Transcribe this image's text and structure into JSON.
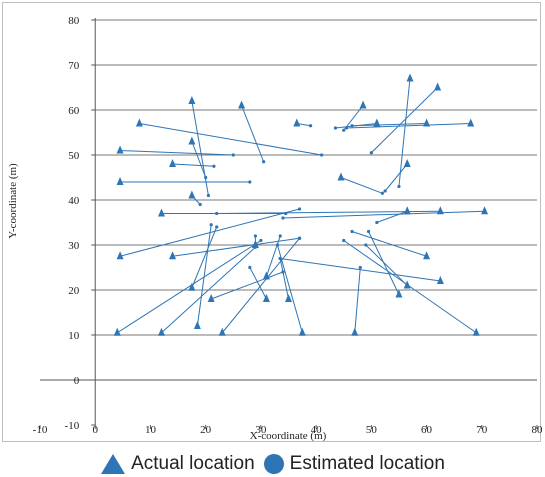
{
  "chart_data": {
    "type": "scatter",
    "title": "",
    "xlabel": "X-coordinate (m)",
    "ylabel": "Y-coordinate (m)",
    "xlim": [
      -10,
      80
    ],
    "ylim": [
      -10,
      80
    ],
    "x_ticks": [
      -10,
      0,
      10,
      20,
      30,
      40,
      50,
      60,
      70,
      80
    ],
    "y_ticks": [
      -10,
      0,
      10,
      20,
      30,
      40,
      50,
      60,
      70,
      80
    ],
    "grid": "horizontal major gridlines",
    "legend_position": "bottom",
    "series": [
      {
        "name": "Actual location",
        "marker": "triangle",
        "color": "#2e75b6",
        "points": [
          [
            8,
            57
          ],
          [
            17.5,
            62
          ],
          [
            26.5,
            61
          ],
          [
            36.5,
            57
          ],
          [
            48.5,
            61
          ],
          [
            57,
            67
          ],
          [
            62,
            65
          ],
          [
            4.5,
            51
          ],
          [
            17.5,
            53
          ],
          [
            14,
            48
          ],
          [
            4.5,
            44
          ],
          [
            17.5,
            41
          ],
          [
            44.5,
            45
          ],
          [
            51,
            57
          ],
          [
            60,
            57
          ],
          [
            68,
            57
          ],
          [
            56.5,
            48
          ],
          [
            12,
            37
          ],
          [
            56.5,
            37.5
          ],
          [
            62.5,
            37.5
          ],
          [
            70.5,
            37.5
          ],
          [
            4.5,
            27.5
          ],
          [
            14,
            27.5
          ],
          [
            17.5,
            20.5
          ],
          [
            21,
            18
          ],
          [
            31,
            23
          ],
          [
            31,
            18
          ],
          [
            35,
            18
          ],
          [
            29,
            30
          ],
          [
            18.5,
            12
          ],
          [
            4,
            10.5
          ],
          [
            12,
            10.5
          ],
          [
            23,
            10.5
          ],
          [
            37.5,
            10.5
          ],
          [
            47,
            10.5
          ],
          [
            69,
            10.5
          ],
          [
            55,
            19
          ],
          [
            56.5,
            21
          ],
          [
            60,
            27.5
          ],
          [
            62.5,
            22
          ]
        ]
      },
      {
        "name": "Estimated location",
        "marker": "circle",
        "color": "#2e75b6",
        "points": [
          [
            41,
            50
          ],
          [
            20.5,
            41
          ],
          [
            30.5,
            48.5
          ],
          [
            39,
            56.5
          ],
          [
            45,
            55.5
          ],
          [
            55,
            43
          ],
          [
            50,
            50.5
          ],
          [
            25,
            50
          ],
          [
            20,
            45
          ],
          [
            21.5,
            47.5
          ],
          [
            28,
            44
          ],
          [
            19,
            39
          ],
          [
            52,
            41.5
          ],
          [
            43.5,
            56
          ],
          [
            46.5,
            56.5
          ],
          [
            45.5,
            56
          ],
          [
            52.5,
            42
          ],
          [
            34.5,
            37
          ],
          [
            51,
            35
          ],
          [
            22,
            37
          ],
          [
            34,
            36
          ],
          [
            37,
            38
          ],
          [
            37,
            31.5
          ],
          [
            22,
            34
          ],
          [
            34,
            24
          ],
          [
            33.5,
            32
          ],
          [
            28,
            25
          ],
          [
            33.5,
            27
          ],
          [
            29,
            32
          ],
          [
            21,
            34.5
          ],
          [
            30,
            31
          ],
          [
            29,
            29.5
          ],
          [
            37,
            31.5
          ],
          [
            33,
            30
          ],
          [
            48,
            25
          ],
          [
            45,
            31
          ],
          [
            49.5,
            33
          ],
          [
            49,
            30
          ],
          [
            46.5,
            33
          ],
          [
            33.5,
            27
          ]
        ]
      }
    ],
    "pairs": [
      [
        0,
        0
      ],
      [
        1,
        1
      ],
      [
        2,
        2
      ],
      [
        3,
        3
      ],
      [
        4,
        4
      ],
      [
        5,
        5
      ],
      [
        6,
        6
      ],
      [
        7,
        7
      ],
      [
        8,
        8
      ],
      [
        9,
        9
      ],
      [
        10,
        10
      ],
      [
        11,
        11
      ],
      [
        12,
        12
      ],
      [
        13,
        13
      ],
      [
        14,
        14
      ],
      [
        15,
        15
      ],
      [
        16,
        16
      ],
      [
        17,
        17
      ],
      [
        18,
        18
      ],
      [
        19,
        19
      ],
      [
        20,
        20
      ],
      [
        21,
        21
      ],
      [
        22,
        22
      ],
      [
        23,
        23
      ],
      [
        24,
        24
      ],
      [
        25,
        25
      ],
      [
        26,
        26
      ],
      [
        27,
        27
      ],
      [
        28,
        28
      ],
      [
        29,
        29
      ],
      [
        30,
        30
      ],
      [
        31,
        31
      ],
      [
        32,
        32
      ],
      [
        33,
        33
      ],
      [
        34,
        34
      ],
      [
        35,
        35
      ],
      [
        36,
        36
      ],
      [
        37,
        37
      ],
      [
        38,
        38
      ],
      [
        39,
        39
      ]
    ]
  },
  "legend": {
    "actual_label": "Actual location",
    "estimated_label": "Estimated location"
  }
}
